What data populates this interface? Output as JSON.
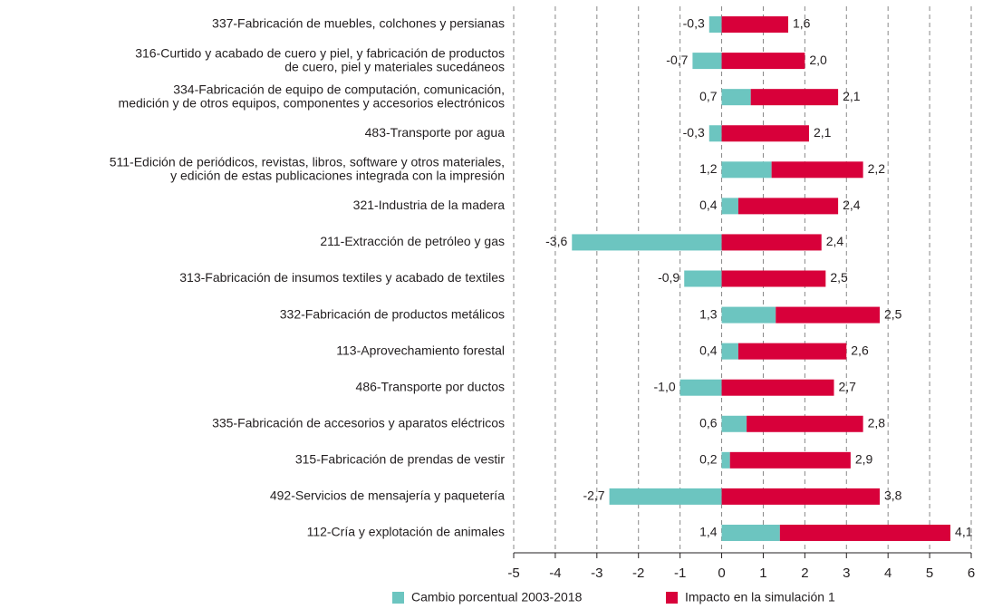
{
  "chart_data": {
    "type": "bar",
    "stacked": true,
    "orientation": "horizontal",
    "categories": [
      [
        "337-Fabricación de muebles, colchones y persianas"
      ],
      [
        "316-Curtido y acabado de cuero y piel, y fabricación de productos",
        "de cuero, piel y materiales sucedáneos"
      ],
      [
        "334-Fabricación de equipo de computación, comunicación,",
        "medición y de otros equipos, componentes y accesorios electrónicos"
      ],
      [
        "483-Transporte por agua"
      ],
      [
        "511-Edición de periódicos, revistas, libros, software y otros materiales,",
        "y edición de estas publicaciones integrada con la impresión"
      ],
      [
        "321-Industria de la madera"
      ],
      [
        "211-Extracción de petróleo y gas"
      ],
      [
        "313-Fabricación de insumos textiles y acabado de textiles"
      ],
      [
        "332-Fabricación de productos metálicos"
      ],
      [
        "113-Aprovechamiento forestal"
      ],
      [
        "486-Transporte por ductos"
      ],
      [
        "335-Fabricación de accesorios y aparatos eléctricos"
      ],
      [
        "315-Fabricación de prendas de vestir"
      ],
      [
        "492-Servicios de mensajería y paquetería"
      ],
      [
        "112-Cría y explotación de animales"
      ]
    ],
    "series": [
      {
        "name": "Cambio porcentual 2003-2018",
        "color": "#6cc5c0",
        "values": [
          -0.3,
          -0.7,
          0.7,
          -0.3,
          1.2,
          0.4,
          -3.6,
          -0.9,
          1.3,
          0.4,
          -1.0,
          0.6,
          0.2,
          -2.7,
          1.4
        ],
        "value_labels": [
          "-0,3",
          "-0,7",
          "0,7",
          "-0,3",
          "1,2",
          "0,4",
          "-3,6",
          "-0,9",
          "1,3",
          "0,4",
          "-1,0",
          "0,6",
          "0,2",
          "-2,7",
          "1,4"
        ]
      },
      {
        "name": "Impacto en la simulación 1",
        "color": "#d8003a",
        "values": [
          1.6,
          2.0,
          2.1,
          2.1,
          2.2,
          2.4,
          2.4,
          2.5,
          2.5,
          2.6,
          2.7,
          2.8,
          2.9,
          3.8,
          4.1
        ],
        "value_labels": [
          "1,6",
          "2,0",
          "2,1",
          "2,1",
          "2,2",
          "2,4",
          "2,4",
          "2,5",
          "2,5",
          "2,6",
          "2,7",
          "2,8",
          "2,9",
          "3,8",
          "4,1"
        ]
      }
    ],
    "xlim": [
      -5,
      6
    ],
    "xticks": [
      -5,
      -4,
      -3,
      -2,
      -1,
      0,
      1,
      2,
      3,
      4,
      5,
      6
    ],
    "grid": true,
    "legend": "bottom"
  }
}
